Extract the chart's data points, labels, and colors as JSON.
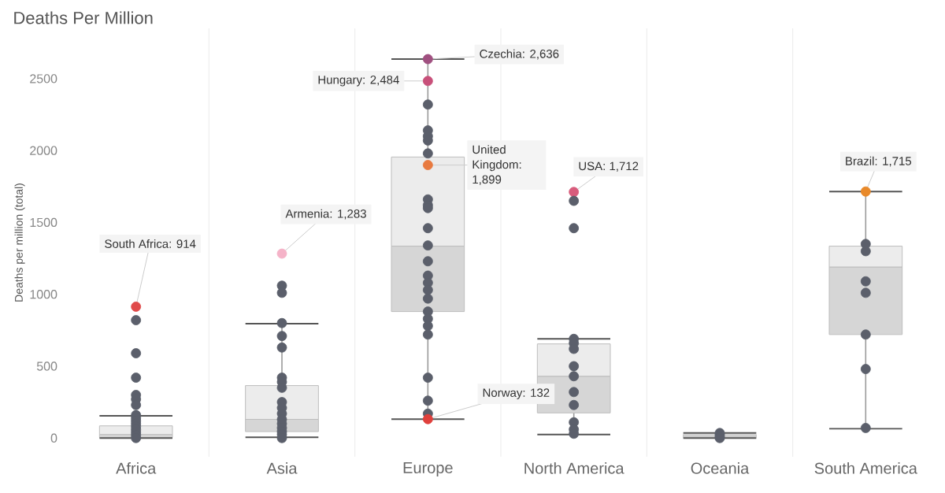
{
  "chart_data": {
    "type": "box",
    "title": "Deaths Per Million",
    "ylabel": "Deaths per million (total)",
    "categories": [
      "Africa",
      "Asia",
      "Europe",
      "North America",
      "Oceania",
      "South America"
    ],
    "boxes": [
      {
        "low": 0,
        "q1": 5,
        "median": 25,
        "q3": 85,
        "high": 155
      },
      {
        "low": 5,
        "q1": 45,
        "median": 130,
        "q3": 365,
        "high": 795
      },
      {
        "low": 132,
        "q1": 880,
        "median": 1335,
        "q3": 1955,
        "high": 2636
      },
      {
        "low": 25,
        "q1": 175,
        "median": 430,
        "q3": 655,
        "high": 690
      },
      {
        "low": 0,
        "q1": 5,
        "median": 15,
        "q3": 25,
        "high": 35
      },
      {
        "low": 65,
        "q1": 720,
        "median": 1190,
        "q3": 1335,
        "high": 1715
      }
    ],
    "series": [
      {
        "type": "scatter",
        "x": [
          "Africa",
          "Africa",
          "Africa",
          "Africa",
          "Africa",
          "Africa",
          "Africa",
          "Africa",
          "Africa",
          "Africa",
          "Africa",
          "Africa",
          "Africa",
          "Africa",
          "Africa",
          "Africa",
          "Asia",
          "Asia",
          "Asia",
          "Asia",
          "Asia",
          "Asia",
          "Asia",
          "Asia",
          "Asia",
          "Asia",
          "Asia",
          "Asia",
          "Asia",
          "Asia",
          "Asia",
          "Asia",
          "Asia",
          "Asia",
          "Europe",
          "Europe",
          "Europe",
          "Europe",
          "Europe",
          "Europe",
          "Europe",
          "Europe",
          "Europe",
          "Europe",
          "Europe",
          "Europe",
          "Europe",
          "Europe",
          "Europe",
          "Europe",
          "Europe",
          "Europe",
          "Europe",
          "Europe",
          "Europe",
          "Europe",
          "Europe",
          "Europe",
          "Europe",
          "Europe",
          "North America",
          "North America",
          "North America",
          "North America",
          "North America",
          "North America",
          "North America",
          "North America",
          "North America",
          "North America",
          "North America",
          "North America",
          "North America",
          "Oceania",
          "Oceania",
          "Oceania",
          "Oceania",
          "South America",
          "South America",
          "South America",
          "South America",
          "South America",
          "South America",
          "South America",
          "South America"
        ],
        "values": [
          914,
          820,
          590,
          420,
          300,
          270,
          230,
          160,
          140,
          120,
          100,
          80,
          60,
          40,
          20,
          0,
          1283,
          1060,
          1010,
          800,
          710,
          630,
          420,
          390,
          350,
          250,
          210,
          170,
          130,
          100,
          70,
          45,
          25,
          0,
          2636,
          2484,
          2320,
          2140,
          2100,
          2070,
          1980,
          1899,
          1660,
          1620,
          1600,
          1460,
          1340,
          1230,
          1130,
          1080,
          1030,
          970,
          880,
          830,
          780,
          720,
          420,
          260,
          170,
          132,
          1712,
          1650,
          1460,
          690,
          660,
          620,
          500,
          430,
          320,
          230,
          110,
          60,
          30,
          35,
          20,
          5,
          0,
          1715,
          1350,
          1300,
          1090,
          1010,
          720,
          480,
          70
        ],
        "colors": [
          "#e04a4a",
          "#5b5f6b",
          "#5b5f6b",
          "#5b5f6b",
          "#5b5f6b",
          "#5b5f6b",
          "#5b5f6b",
          "#5b5f6b",
          "#5b5f6b",
          "#5b5f6b",
          "#5b5f6b",
          "#5b5f6b",
          "#5b5f6b",
          "#5b5f6b",
          "#5b5f6b",
          "#5b5f6b",
          "#f5b3c8",
          "#5b5f6b",
          "#5b5f6b",
          "#5b5f6b",
          "#5b5f6b",
          "#5b5f6b",
          "#5b5f6b",
          "#5b5f6b",
          "#5b5f6b",
          "#5b5f6b",
          "#5b5f6b",
          "#5b5f6b",
          "#5b5f6b",
          "#5b5f6b",
          "#5b5f6b",
          "#5b5f6b",
          "#5b5f6b",
          "#5b5f6b",
          "#a05080",
          "#c8507a",
          "#5b5f6b",
          "#5b5f6b",
          "#5b5f6b",
          "#5b5f6b",
          "#5b5f6b",
          "#e87a40",
          "#5b5f6b",
          "#5b5f6b",
          "#5b5f6b",
          "#5b5f6b",
          "#5b5f6b",
          "#5b5f6b",
          "#5b5f6b",
          "#5b5f6b",
          "#5b5f6b",
          "#5b5f6b",
          "#5b5f6b",
          "#5b5f6b",
          "#5b5f6b",
          "#5b5f6b",
          "#5b5f6b",
          "#5b5f6b",
          "#5b5f6b",
          "#e0403c",
          "#d85c7c",
          "#5b5f6b",
          "#5b5f6b",
          "#5b5f6b",
          "#5b5f6b",
          "#5b5f6b",
          "#5b5f6b",
          "#5b5f6b",
          "#5b5f6b",
          "#5b5f6b",
          "#5b5f6b",
          "#5b5f6b",
          "#5b5f6b",
          "#5b5f6b",
          "#5b5f6b",
          "#5b5f6b",
          "#5b5f6b",
          "#e8892a",
          "#5b5f6b",
          "#5b5f6b",
          "#5b5f6b",
          "#5b5f6b",
          "#5b5f6b",
          "#5b5f6b",
          "#5b5f6b"
        ]
      }
    ],
    "annotations": [
      {
        "text": "South Africa: 914",
        "x": "Africa",
        "y": 914
      },
      {
        "text": "Armenia: 1,283",
        "x": "Asia",
        "y": 1283
      },
      {
        "text": "Czechia: 2,636",
        "x": "Europe",
        "y": 2636
      },
      {
        "text": "Hungary: 2,484",
        "x": "Europe",
        "y": 2484
      },
      {
        "text": "United Kingdom: 1,899",
        "x": "Europe",
        "y": 1899
      },
      {
        "text": "Norway: 132",
        "x": "Europe",
        "y": 132
      },
      {
        "text": "USA: 1,712",
        "x": "North America",
        "y": 1712
      },
      {
        "text": "Brazil: 1,715",
        "x": "South America",
        "y": 1715
      }
    ],
    "ylim": [
      -130,
      2850
    ],
    "yticks": [
      0,
      500,
      1000,
      1500,
      2000,
      2500
    ],
    "marker": "circle",
    "grid": false
  }
}
